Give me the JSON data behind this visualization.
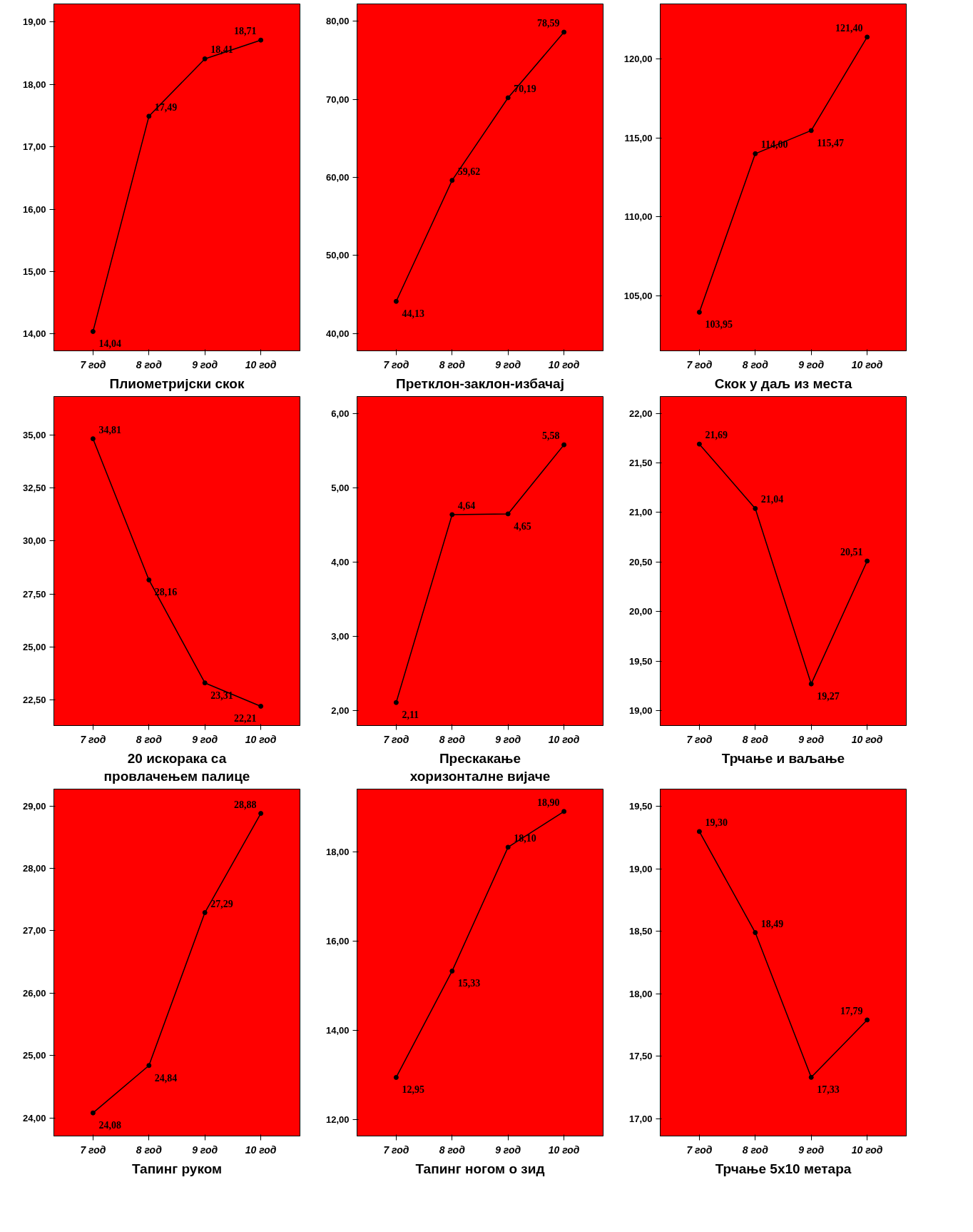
{
  "chart_data": [
    {
      "type": "line",
      "xlabel": "Плиометријски скок",
      "categories": [
        "7 год",
        "8 год",
        "9 год",
        "10 год"
      ],
      "values": [
        14.04,
        17.49,
        18.41,
        18.71
      ],
      "value_labels": [
        "14,04",
        "17,49",
        "18,41",
        "18,71"
      ],
      "color": "#000000",
      "marker": "circle",
      "line_style": "solid",
      "grid": false,
      "ylim": [
        13.73,
        19.29
      ],
      "yticks": [
        {
          "value": 14,
          "label": "14,00"
        },
        {
          "value": 15,
          "label": "15,00"
        },
        {
          "value": 16,
          "label": "16,00"
        },
        {
          "value": 17,
          "label": "17,00"
        },
        {
          "value": 18,
          "label": "18,00"
        },
        {
          "value": 19,
          "label": "19,00"
        }
      ]
    },
    {
      "type": "line",
      "xlabel": "Претклон-заклон-избачај",
      "categories": [
        "7 год",
        "8 год",
        "9 год",
        "10 год"
      ],
      "values": [
        44.13,
        59.62,
        70.19,
        78.59
      ],
      "value_labels": [
        "44,13",
        "59,62",
        "70,19",
        "78,59"
      ],
      "color": "#000000",
      "marker": "circle",
      "line_style": "solid",
      "grid": false,
      "ylim": [
        37.8,
        82.2
      ],
      "yticks": [
        {
          "value": 40,
          "label": "40,00"
        },
        {
          "value": 50,
          "label": "50,00"
        },
        {
          "value": 60,
          "label": "60,00"
        },
        {
          "value": 70,
          "label": "70,00"
        },
        {
          "value": 80,
          "label": "80,00"
        }
      ]
    },
    {
      "type": "line",
      "xlabel": "Скок у даљ из места",
      "categories": [
        "7 год",
        "8 год",
        "9 год",
        "10 год"
      ],
      "values": [
        103.95,
        114.0,
        115.47,
        121.4
      ],
      "value_labels": [
        "103,95",
        "114,00",
        "115,47",
        "121,40"
      ],
      "color": "#000000",
      "marker": "circle",
      "line_style": "solid",
      "grid": false,
      "ylim": [
        101.5,
        123.5
      ],
      "yticks": [
        {
          "value": 105,
          "label": "105,00"
        },
        {
          "value": 110,
          "label": "110,00"
        },
        {
          "value": 115,
          "label": "115,00"
        },
        {
          "value": 120,
          "label": "120,00"
        }
      ]
    },
    {
      "type": "line",
      "xlabel": "20 искорака са\nпровлачењем палице",
      "categories": [
        "7 год",
        "8 год",
        "9 год",
        "10 год"
      ],
      "values": [
        34.81,
        28.16,
        23.31,
        22.21
      ],
      "value_labels": [
        "34,81",
        "28,16",
        "23,31",
        "22,21"
      ],
      "color": "#000000",
      "marker": "circle",
      "line_style": "solid",
      "grid": false,
      "ylim": [
        21.3,
        36.8
      ],
      "yticks": [
        {
          "value": 22.5,
          "label": "22,50"
        },
        {
          "value": 25,
          "label": "25,00"
        },
        {
          "value": 27.5,
          "label": "27,50"
        },
        {
          "value": 30,
          "label": "30,00"
        },
        {
          "value": 32.5,
          "label": "32,50"
        },
        {
          "value": 35,
          "label": "35,00"
        }
      ]
    },
    {
      "type": "line",
      "xlabel": "Прескакање\nхоризонталне вијаче",
      "categories": [
        "7 год",
        "8 год",
        "9 год",
        "10 год"
      ],
      "values": [
        2.11,
        4.64,
        4.65,
        5.58
      ],
      "value_labels": [
        "2,11",
        "4,64",
        "4,65",
        "5,58"
      ],
      "color": "#000000",
      "marker": "circle",
      "line_style": "solid",
      "grid": false,
      "ylim": [
        1.8,
        6.23
      ],
      "yticks": [
        {
          "value": 2,
          "label": "2,00"
        },
        {
          "value": 3,
          "label": "3,00"
        },
        {
          "value": 4,
          "label": "4,00"
        },
        {
          "value": 5,
          "label": "5,00"
        },
        {
          "value": 6,
          "label": "6,00"
        }
      ]
    },
    {
      "type": "line",
      "xlabel": "Трчање и ваљање",
      "categories": [
        "7 год",
        "8 год",
        "9 год",
        "10 год"
      ],
      "values": [
        21.69,
        21.04,
        19.27,
        20.51
      ],
      "value_labels": [
        "21,69",
        "21,04",
        "19,27",
        "20,51"
      ],
      "color": "#000000",
      "marker": "circle",
      "line_style": "solid",
      "grid": false,
      "ylim": [
        18.85,
        22.17
      ],
      "yticks": [
        {
          "value": 19,
          "label": "19,00"
        },
        {
          "value": 19.5,
          "label": "19,50"
        },
        {
          "value": 20,
          "label": "20,00"
        },
        {
          "value": 20.5,
          "label": "20,50"
        },
        {
          "value": 21,
          "label": "21,00"
        },
        {
          "value": 21.5,
          "label": "21,50"
        },
        {
          "value": 22,
          "label": "22,00"
        }
      ]
    },
    {
      "type": "line",
      "xlabel": "Тапинг руком",
      "categories": [
        "7 год",
        "8 год",
        "9 год",
        "10 год"
      ],
      "values": [
        24.08,
        24.84,
        27.29,
        28.88
      ],
      "value_labels": [
        "24,08",
        "24,84",
        "27,29",
        "28,88"
      ],
      "color": "#000000",
      "marker": "circle",
      "line_style": "solid",
      "grid": false,
      "ylim": [
        23.71,
        29.27
      ],
      "yticks": [
        {
          "value": 24,
          "label": "24,00"
        },
        {
          "value": 25,
          "label": "25,00"
        },
        {
          "value": 26,
          "label": "26,00"
        },
        {
          "value": 27,
          "label": "27,00"
        },
        {
          "value": 28,
          "label": "28,00"
        },
        {
          "value": 29,
          "label": "29,00"
        }
      ]
    },
    {
      "type": "line",
      "xlabel": "Тапинг ногом о зид",
      "categories": [
        "7 год",
        "8 год",
        "9 год",
        "10 год"
      ],
      "values": [
        12.95,
        15.33,
        18.1,
        18.9
      ],
      "value_labels": [
        "12,95",
        "15,33",
        "18,10",
        "18,90"
      ],
      "color": "#000000",
      "marker": "circle",
      "line_style": "solid",
      "grid": false,
      "ylim": [
        11.64,
        19.4
      ],
      "yticks": [
        {
          "value": 12,
          "label": "12,00"
        },
        {
          "value": 14,
          "label": "14,00"
        },
        {
          "value": 16,
          "label": "16,00"
        },
        {
          "value": 18,
          "label": "18,00"
        }
      ]
    },
    {
      "type": "line",
      "xlabel": "Трчање 5x10 метара",
      "categories": [
        "7 год",
        "8 год",
        "9 год",
        "10 год"
      ],
      "values": [
        19.3,
        18.49,
        17.33,
        17.79
      ],
      "value_labels": [
        "19,30",
        "18,49",
        "17,33",
        "17,79"
      ],
      "color": "#000000",
      "marker": "circle",
      "line_style": "solid",
      "grid": false,
      "ylim": [
        16.86,
        19.64
      ],
      "yticks": [
        {
          "value": 17,
          "label": "17,00"
        },
        {
          "value": 17.5,
          "label": "17,50"
        },
        {
          "value": 18,
          "label": "18,00"
        },
        {
          "value": 18.5,
          "label": "18,50"
        },
        {
          "value": 19,
          "label": "19,00"
        },
        {
          "value": 19.5,
          "label": "19,50"
        }
      ]
    }
  ]
}
